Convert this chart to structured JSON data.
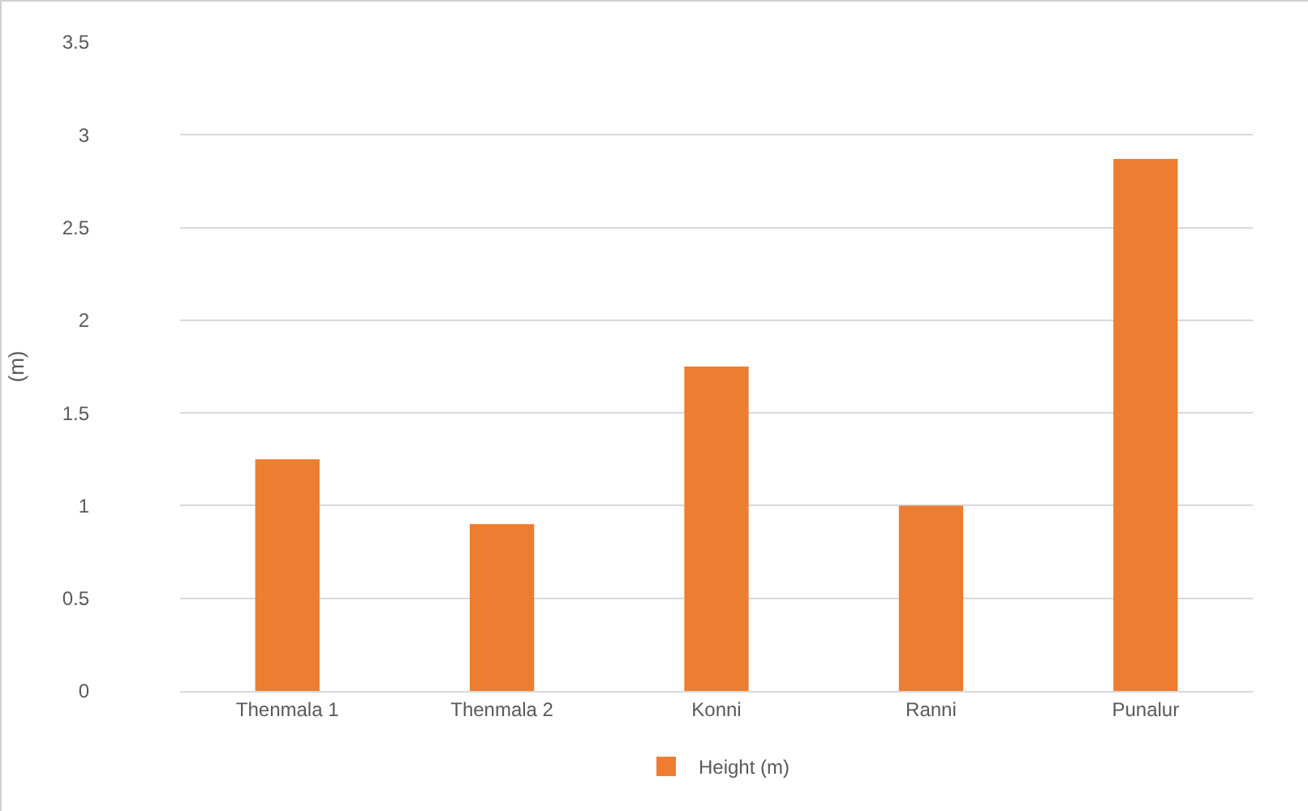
{
  "chart_data": {
    "type": "bar",
    "ylabel": "(m)",
    "categories": [
      "Thenmala 1",
      "Thenmala 2",
      "Konni",
      "Ranni",
      "Punalur"
    ],
    "series": [
      {
        "name": "Height (m)",
        "color": "#ed7d31",
        "values": [
          1.25,
          0.9,
          1.75,
          1.0,
          2.87
        ]
      }
    ],
    "ylim": [
      0,
      3.5
    ],
    "yticks": [
      0,
      0.5,
      1,
      1.5,
      2,
      2.5,
      3,
      3.5
    ],
    "grid": "y",
    "legend": "bottom"
  }
}
